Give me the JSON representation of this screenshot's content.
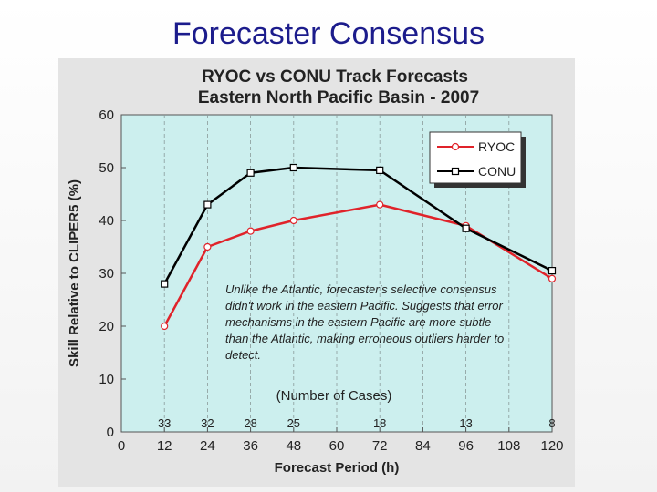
{
  "slide": {
    "title": "Forecaster Consensus",
    "note": "Unlike the Atlantic, forecaster's selective consensus didn't work in the eastern Pacific. Suggests that error mechanisms in the eastern Pacific are more subtle than the Atlantic, making erroneous outliers harder to detect."
  },
  "chart_data": {
    "type": "line",
    "title": "RYOC vs CONU Track Forecasts",
    "subtitle": "Eastern North Pacific Basin - 2007",
    "xlabel": "Forecast Period (h)",
    "ylabel": "Skill Relative to CLIPER5 (%)",
    "xlim": [
      0,
      120
    ],
    "ylim": [
      0,
      60
    ],
    "x_ticks": [
      0,
      12,
      24,
      36,
      48,
      60,
      72,
      84,
      96,
      108,
      120
    ],
    "y_ticks": [
      0,
      10,
      20,
      30,
      40,
      50,
      60
    ],
    "grid": "vertical dashed lines",
    "legend_position": "top-right",
    "cases_label": "(Number of Cases)",
    "cases": [
      {
        "x": 12,
        "n": "33"
      },
      {
        "x": 24,
        "n": "32"
      },
      {
        "x": 36,
        "n": "28"
      },
      {
        "x": 48,
        "n": "25"
      },
      {
        "x": 72,
        "n": "18"
      },
      {
        "x": 96,
        "n": "13"
      },
      {
        "x": 120,
        "n": "8"
      }
    ],
    "x": [
      12,
      24,
      36,
      48,
      72,
      96,
      120
    ],
    "series": [
      {
        "name": "RYOC",
        "color": "#e0232a",
        "marker": "circle",
        "values": [
          20,
          35,
          38,
          40,
          43,
          39,
          29
        ]
      },
      {
        "name": "CONU",
        "color": "#000000",
        "marker": "square",
        "values": [
          28,
          43,
          49,
          50,
          49.5,
          38.5,
          30.5
        ]
      }
    ],
    "colors": {
      "plot_background": "#ccefee",
      "panel_background": "#e4e4e4"
    }
  }
}
